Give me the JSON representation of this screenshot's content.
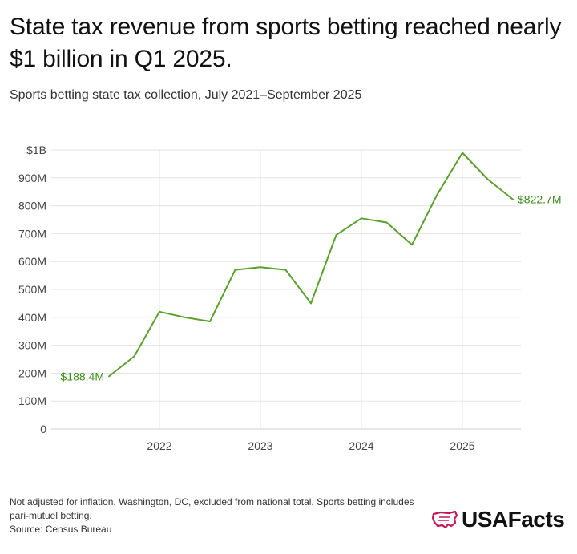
{
  "header": {
    "title": "State tax revenue from sports betting reached nearly $1 billion in Q1 2025.",
    "subtitle": "Sports betting state tax collection, July 2021–September 2025"
  },
  "footer": {
    "note": "Not adjusted for inflation. Washington, DC, excluded from national total. Sports betting includes pari-mutuel betting.",
    "source": "Source: Census Bureau"
  },
  "brand": {
    "logo_text": "USAFacts",
    "icon": "usa-map-icon",
    "icon_color": "#c2185b"
  },
  "colors": {
    "line": "#5aa02c",
    "label": "#3c8c1a",
    "grid": "#e3e3e3",
    "axis": "#cfcfcf"
  },
  "chart_data": {
    "type": "line",
    "title": "State tax revenue from sports betting reached nearly $1 billion in Q1 2025.",
    "subtitle": "Sports betting state tax collection, July 2021–September 2025",
    "xlabel": "",
    "ylabel": "",
    "x": [
      "2021-Q3",
      "2021-Q4",
      "2022-Q1",
      "2022-Q2",
      "2022-Q3",
      "2022-Q4",
      "2023-Q1",
      "2023-Q2",
      "2023-Q3",
      "2023-Q4",
      "2024-Q1",
      "2024-Q2",
      "2024-Q3",
      "2024-Q4",
      "2025-Q1",
      "2025-Q2",
      "2025-Q3"
    ],
    "series": [
      {
        "values": [
          188.4,
          260,
          420,
          400,
          385,
          570,
          580,
          570,
          450,
          695,
          755,
          740,
          660,
          840,
          990,
          895,
          822.7
        ]
      }
    ],
    "ylim": [
      0,
      1000
    ],
    "yticks": [
      0,
      100,
      200,
      300,
      400,
      500,
      600,
      700,
      800,
      900,
      1000
    ],
    "ytick_labels": [
      "0",
      "100M",
      "200M",
      "300M",
      "400M",
      "500M",
      "600M",
      "700M",
      "800M",
      "900M",
      "$1B"
    ],
    "xticks": [
      {
        "label": "2022",
        "at": "2022-Q1"
      },
      {
        "label": "2023",
        "at": "2023-Q1"
      },
      {
        "label": "2024",
        "at": "2024-Q1"
      },
      {
        "label": "2025",
        "at": "2025-Q1"
      }
    ],
    "annotations": [
      {
        "text": "$188.4M",
        "at": "2021-Q3",
        "value": 188.4,
        "side": "left"
      },
      {
        "text": "$822.7M",
        "at": "2025-Q3",
        "value": 822.7,
        "side": "right"
      }
    ],
    "grid": {
      "horizontal": true,
      "vertical": true
    },
    "legend": "none"
  }
}
